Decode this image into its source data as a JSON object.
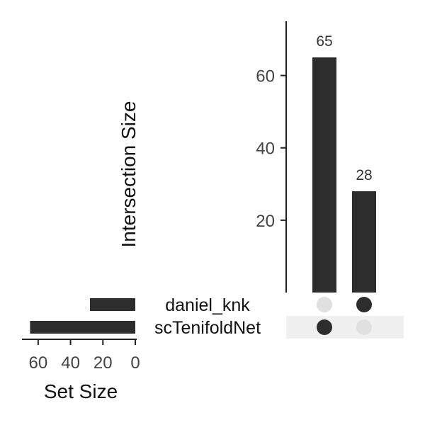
{
  "chart_data": [
    {
      "type": "bar",
      "role": "intersection-sizes",
      "ylabel": "Intersection Size",
      "ylim": [
        0,
        75
      ],
      "yticks": [
        "20",
        "40",
        "60"
      ],
      "ytick_values": [
        20,
        40,
        60
      ],
      "values": [
        65,
        28
      ],
      "value_labels": [
        "65",
        "28"
      ],
      "bar_color": "#2d2d2d"
    },
    {
      "type": "bar",
      "role": "set-sizes",
      "orientation": "horizontal-reversed",
      "xlabel": "Set Size",
      "xlim": [
        70,
        0
      ],
      "xticks": [
        "60",
        "40",
        "20",
        "0"
      ],
      "xtick_values": [
        60,
        40,
        20,
        0
      ],
      "categories": [
        "daniel_knk",
        "scTenifoldNet"
      ],
      "values": [
        28,
        65
      ],
      "bar_color": "#2d2d2d"
    }
  ],
  "matrix": {
    "sets": [
      "daniel_knk",
      "scTenifoldNet"
    ],
    "membership": [
      [
        false,
        true
      ],
      [
        true,
        false
      ]
    ],
    "active_dot_color": "#2d2d2d",
    "inactive_dot_color": "#e0e0e0",
    "stripe_color": "#f0f0f0"
  }
}
